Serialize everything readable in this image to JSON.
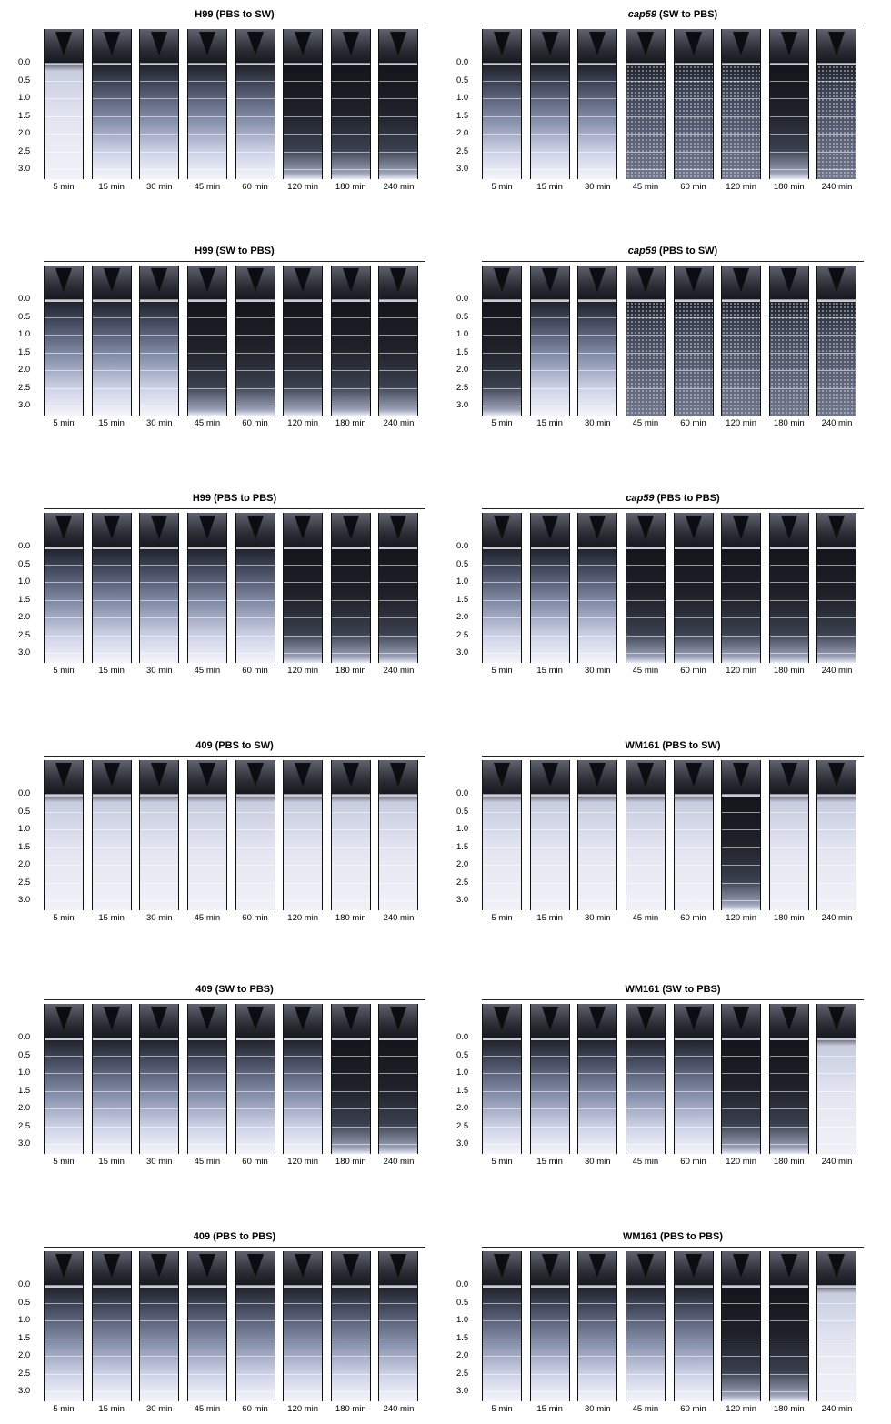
{
  "scale_ticks": [
    "0.0",
    "0.5",
    "1.0",
    "1.5",
    "2.0",
    "2.5",
    "3.0"
  ],
  "time_points": [
    "5 min",
    "15 min",
    "30 min",
    "45 min",
    "60 min",
    "120 min",
    "180 min",
    "240 min"
  ],
  "panels": [
    {
      "strain": "H99",
      "strain_italic": false,
      "condition": "(PBS to SW)"
    },
    {
      "strain": "cap59",
      "strain_italic": true,
      "condition": "(SW to PBS)"
    },
    {
      "strain": "H99",
      "strain_italic": false,
      "condition": "(SW to PBS)"
    },
    {
      "strain": "cap59",
      "strain_italic": true,
      "condition": "(PBS to SW)"
    },
    {
      "strain": "H99",
      "strain_italic": false,
      "condition": "(PBS to PBS)"
    },
    {
      "strain": "cap59",
      "strain_italic": true,
      "condition": "(PBS to PBS)"
    },
    {
      "strain": "409",
      "strain_italic": false,
      "condition": "(PBS to SW)"
    },
    {
      "strain": "WM161",
      "strain_italic": false,
      "condition": "(PBS to SW)"
    },
    {
      "strain": "409",
      "strain_italic": false,
      "condition": "(SW to PBS)"
    },
    {
      "strain": "WM161",
      "strain_italic": false,
      "condition": "(SW to PBS)"
    },
    {
      "strain": "409",
      "strain_italic": false,
      "condition": "(PBS to PBS)"
    },
    {
      "strain": "WM161",
      "strain_italic": false,
      "condition": "(PBS to PBS)"
    }
  ]
}
